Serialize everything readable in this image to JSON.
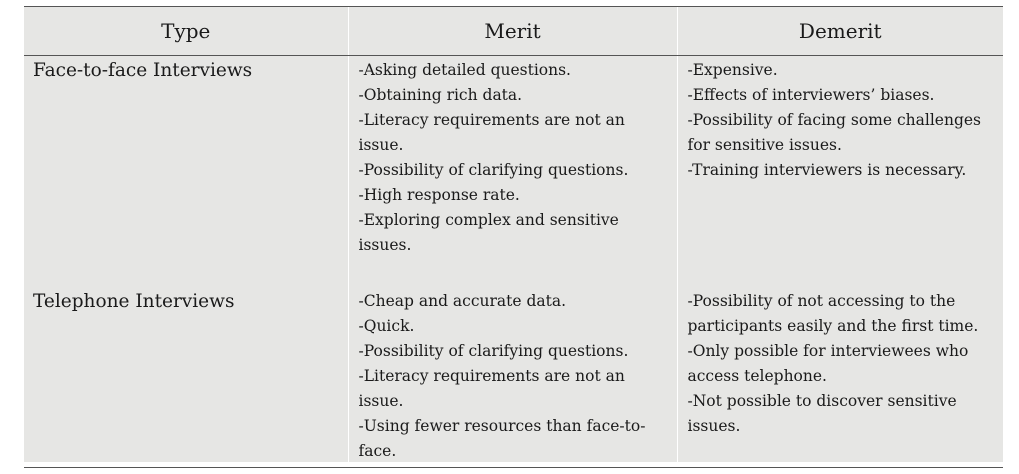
{
  "table": {
    "headers": [
      "Type",
      "Merit",
      "Demerit"
    ],
    "rows": [
      {
        "type": "Face-to-face Interviews",
        "merit": [
          "-Asking detailed questions.",
          "-Obtaining rich data.",
          "-Literacy requirements are not an",
          "issue.",
          "-Possibility of clarifying questions.",
          "-High response rate.",
          "-Exploring complex and sensitive",
          "issues."
        ],
        "demerit": [
          "-Expensive.",
          "-Effects of interviewers’ biases.",
          "-Possibility of facing some challenges",
          "for sensitive issues.",
          "-Training interviewers is necessary."
        ]
      },
      {
        "type": "Telephone Interviews",
        "merit": [
          "-Cheap and accurate data.",
          "-Quick.",
          "-Possibility of clarifying questions.",
          "-Literacy requirements are not an",
          "issue.",
          "-Using fewer resources than face-to-",
          "face."
        ],
        "demerit": [
          "-Possibility of not accessing to the",
          "participants easily and the first time.",
          "-Only possible for interviewees who",
          "access telephone.",
          "-Not possible to discover sensitive",
          "issues."
        ]
      }
    ]
  }
}
